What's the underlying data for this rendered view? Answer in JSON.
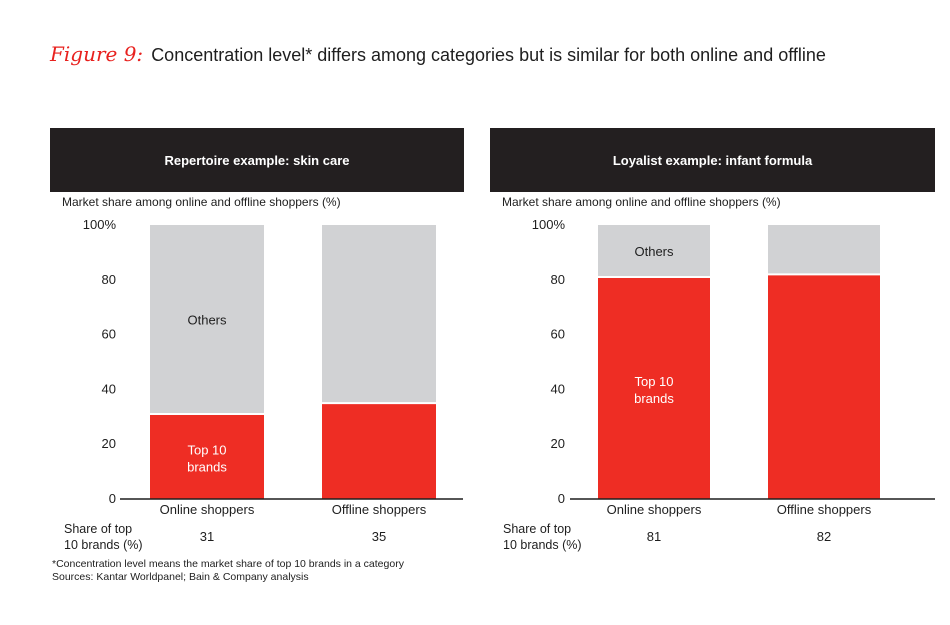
{
  "figure": {
    "label": "Figure 9:",
    "title": "Concentration level* differs among categories but is similar for both online and offline"
  },
  "colors": {
    "red": "#ee2d24",
    "gray": "#d1d2d4",
    "header": "#231f20"
  },
  "chart_data": [
    {
      "type": "bar",
      "stacked": true,
      "title": "Repertoire example: skin care",
      "ylabel": "Market share among online and offline shoppers (%)",
      "categories": [
        "Online shoppers",
        "Offline shoppers"
      ],
      "ylim": [
        0,
        100
      ],
      "yticks": [
        "0",
        "20",
        "40",
        "60",
        "80",
        "100%"
      ],
      "series": [
        {
          "name": "Top 10 brands",
          "values": [
            31,
            35
          ],
          "label_line1": "Top 10",
          "label_line2": "brands"
        },
        {
          "name": "Others",
          "values": [
            69,
            65
          ]
        }
      ],
      "share_row": {
        "label_line1": "Share of top",
        "label_line2": "10 brands (%)",
        "values": [
          "31",
          "35"
        ]
      }
    },
    {
      "type": "bar",
      "stacked": true,
      "title": "Loyalist example: infant formula",
      "ylabel": "Market share among online and offline shoppers (%)",
      "categories": [
        "Online shoppers",
        "Offline shoppers"
      ],
      "ylim": [
        0,
        100
      ],
      "yticks": [
        "0",
        "20",
        "40",
        "60",
        "80",
        "100%"
      ],
      "series": [
        {
          "name": "Top 10 brands",
          "values": [
            81,
            82
          ],
          "label_line1": "Top 10",
          "label_line2": "brands"
        },
        {
          "name": "Others",
          "values": [
            19,
            18
          ]
        }
      ],
      "share_row": {
        "label_line1": "Share of top",
        "label_line2": "10 brands (%)",
        "values": [
          "81",
          "82"
        ]
      }
    }
  ],
  "footnotes": {
    "note": "*Concentration level means the market share of top 10 brands in a category",
    "sources": "Sources: Kantar Worldpanel; Bain & Company analysis"
  }
}
